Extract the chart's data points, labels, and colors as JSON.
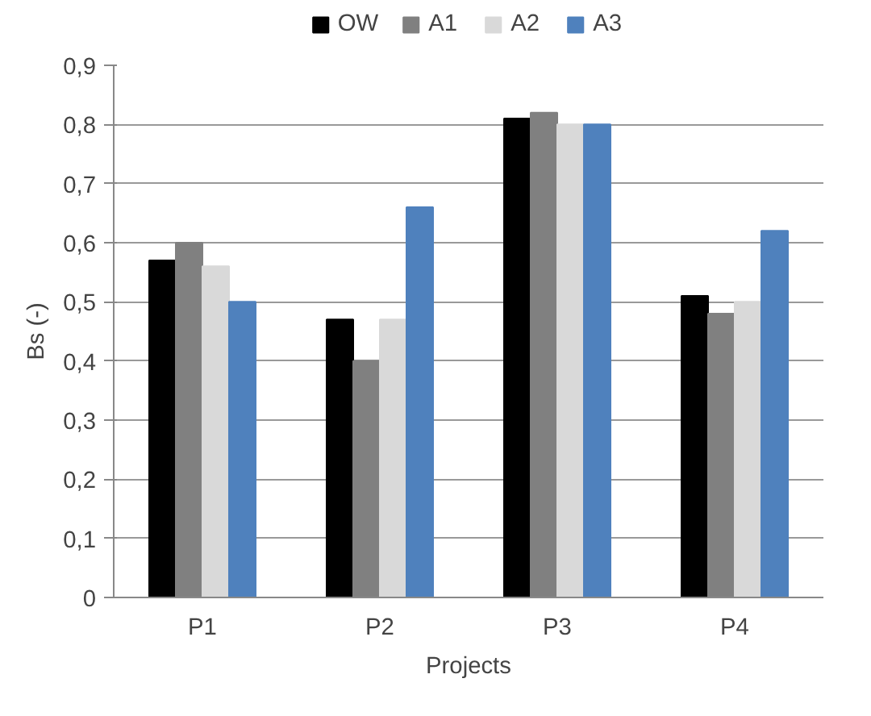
{
  "chart_data": {
    "type": "bar",
    "xlabel": "Projects",
    "ylabel": "Bs (-)",
    "categories": [
      "P1",
      "P2",
      "P3",
      "P4"
    ],
    "series": [
      {
        "name": "OW",
        "color": "#000000",
        "values": [
          0.57,
          0.47,
          0.81,
          0.51
        ]
      },
      {
        "name": "A1",
        "color": "#808080",
        "values": [
          0.6,
          0.4,
          0.82,
          0.48
        ]
      },
      {
        "name": "A2",
        "color": "#d9d9d9",
        "values": [
          0.56,
          0.47,
          0.8,
          0.5
        ]
      },
      {
        "name": "A3",
        "color": "#4f81bd",
        "values": [
          0.5,
          0.66,
          0.8,
          0.62
        ]
      }
    ],
    "ylim": [
      0,
      0.9
    ],
    "yticks": [
      0,
      {
        "value": 0.1,
        "label": "0,1"
      },
      {
        "value": 0.2,
        "label": "0,2"
      },
      {
        "value": 0.3,
        "label": "0,3"
      },
      {
        "value": 0.4,
        "label": "0,4"
      },
      {
        "value": 0.5,
        "label": "0,5"
      },
      {
        "value": 0.6,
        "label": "0,6"
      },
      {
        "value": 0.7,
        "label": "0,7"
      },
      {
        "value": 0.8,
        "label": "0,8"
      },
      {
        "value": 0.9,
        "label": "0,9"
      }
    ],
    "grid": "y",
    "legend": "top"
  }
}
